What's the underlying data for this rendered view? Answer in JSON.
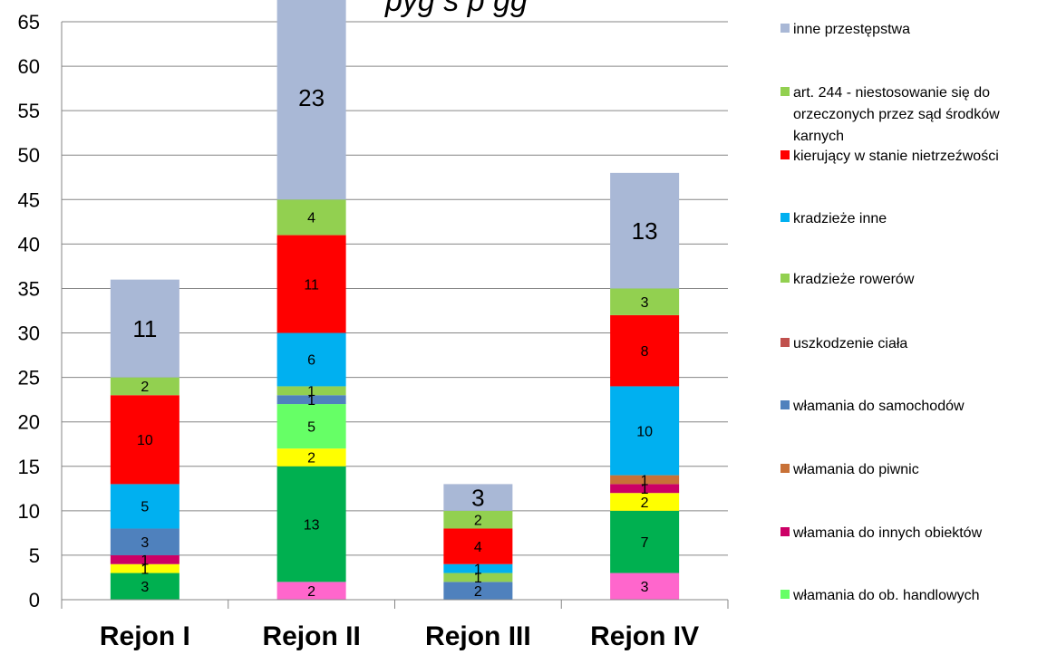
{
  "chart_data": {
    "type": "bar",
    "stacked": true,
    "title_fragment": "pyg   s  p      gg",
    "categories": [
      "Rejon I",
      "Rejon II",
      "Rejon III",
      "Rejon IV"
    ],
    "ylim": [
      0,
      65
    ],
    "yticks": [
      0,
      5,
      10,
      15,
      20,
      25,
      30,
      35,
      40,
      45,
      50,
      55,
      60,
      65
    ],
    "grid": true,
    "legend_position": "right",
    "stack_order": [
      "pink_unlabeled",
      "green_unlabeled",
      "yellow_unlabeled",
      "włamania do ob. handlowych",
      "włamania do innych obiektów",
      "włamania do piwnic",
      "włamania do samochodów",
      "uszkodzenie ciała",
      "kradzieże rowerów",
      "kradzieże inne",
      "kierujący w stanie nietrzeźwości",
      "art. 244 - niestosowanie się do orzeczonych przez sąd środków karnych",
      "inne przestępstwa"
    ],
    "series": [
      {
        "key": "pink_unlabeled",
        "color": "#ff66cc",
        "values": [
          0,
          2,
          0,
          3
        ]
      },
      {
        "key": "green_unlabeled",
        "color": "#00b050",
        "values": [
          3,
          13,
          0,
          7
        ]
      },
      {
        "key": "yellow_unlabeled",
        "color": "#ffff00",
        "values": [
          1,
          2,
          0,
          2
        ]
      },
      {
        "name": "włamania do ob. handlowych",
        "color": "#66ff66",
        "values": [
          0,
          5,
          0,
          0
        ]
      },
      {
        "name": "włamania do innych obiektów",
        "color": "#cc0066",
        "values": [
          1,
          0,
          0,
          1
        ]
      },
      {
        "name": "włamania do piwnic",
        "color": "#c87137",
        "values": [
          0,
          0,
          0,
          1
        ]
      },
      {
        "name": "włamania do samochodów",
        "color": "#4f81bd",
        "values": [
          3,
          1,
          2,
          0
        ]
      },
      {
        "name": "uszkodzenie ciała",
        "color": "#c0504d",
        "values": [
          0,
          0,
          0,
          0
        ]
      },
      {
        "name": "kradzieże rowerów",
        "color": "#92d050",
        "values": [
          0,
          1,
          1,
          0
        ]
      },
      {
        "name": "kradzieże inne",
        "color": "#00b0f0",
        "values": [
          5,
          6,
          1,
          10
        ]
      },
      {
        "name": "kierujący w stanie nietrzeźwości",
        "color": "#ff0000",
        "values": [
          10,
          11,
          4,
          8
        ]
      },
      {
        "name": "art. 244 - niestosowanie się do orzeczonych przez sąd środków karnych",
        "color": "#92d050",
        "values": [
          2,
          4,
          2,
          3
        ]
      },
      {
        "name": "inne przestępstwa",
        "color": "#a9b8d6",
        "values": [
          11,
          23,
          3,
          13
        ]
      }
    ],
    "legend": [
      {
        "label": "inne przestępstwa",
        "color": "#a9b8d6"
      },
      {
        "label": "art. 244 - niestosowanie się do orzeczonych przez sąd środków karnych",
        "color": "#92d050"
      },
      {
        "label": "kierujący w stanie nietrzeźwości",
        "color": "#ff0000"
      },
      {
        "label": "kradzieże inne",
        "color": "#00b0f0"
      },
      {
        "label": "kradzieże rowerów",
        "color": "#92d050"
      },
      {
        "label": "uszkodzenie ciała",
        "color": "#c0504d"
      },
      {
        "label": "włamania do samochodów",
        "color": "#4f81bd"
      },
      {
        "label": "włamania do piwnic",
        "color": "#c87137"
      },
      {
        "label": "włamania do innych obiektów",
        "color": "#cc0066"
      },
      {
        "label": "włamania do ob. handlowych",
        "color": "#66ff66"
      }
    ]
  }
}
